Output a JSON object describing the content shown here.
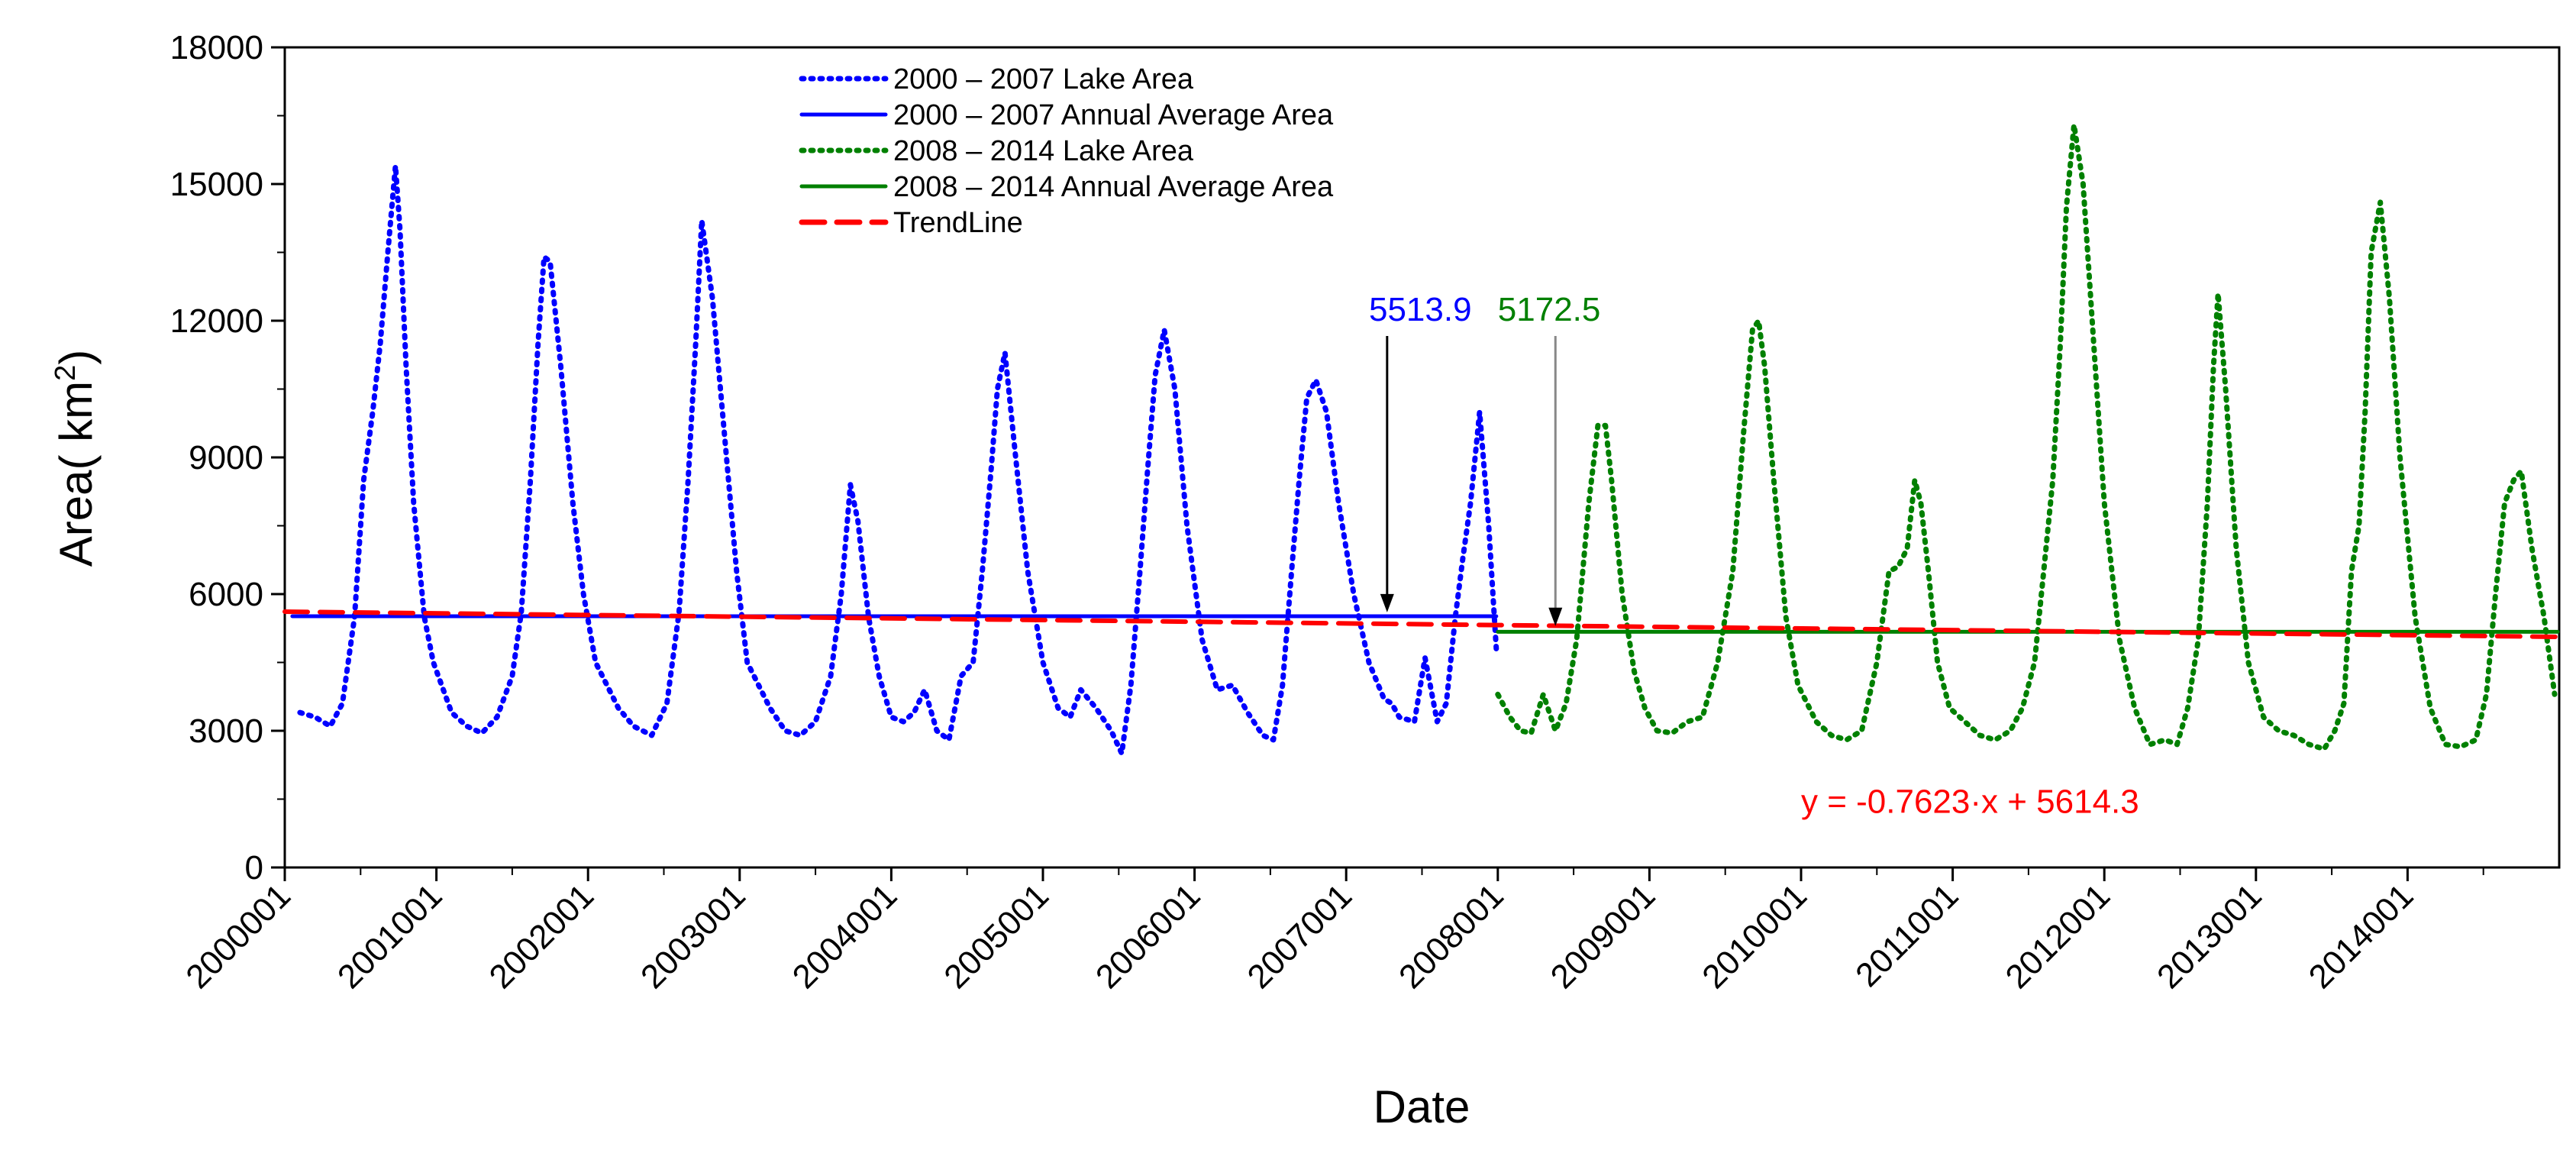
{
  "chart_data": {
    "type": "line",
    "title": "",
    "xlabel": "Date",
    "ylabel": "Area( km",
    "ylabel_sup": "2",
    "ylabel_close": ")",
    "ylim": [
      0,
      18000
    ],
    "xlim": [
      2000.0,
      2015.0
    ],
    "yticks": [
      0,
      3000,
      6000,
      9000,
      12000,
      15000,
      18000
    ],
    "xticks": [
      {
        "value": 2000,
        "label": "2000001"
      },
      {
        "value": 2001,
        "label": "2001001"
      },
      {
        "value": 2002,
        "label": "2002001"
      },
      {
        "value": 2003,
        "label": "2003001"
      },
      {
        "value": 2004,
        "label": "2004001"
      },
      {
        "value": 2005,
        "label": "2005001"
      },
      {
        "value": 2006,
        "label": "2006001"
      },
      {
        "value": 2007,
        "label": "2007001"
      },
      {
        "value": 2008,
        "label": "2008001"
      },
      {
        "value": 2009,
        "label": "2009001"
      },
      {
        "value": 2010,
        "label": "2010001"
      },
      {
        "value": 2011,
        "label": "2011001"
      },
      {
        "value": 2012,
        "label": "2012001"
      },
      {
        "value": 2013,
        "label": "2013001"
      },
      {
        "value": 2014,
        "label": "2014001"
      }
    ],
    "legend_placement": "top-left",
    "series": [
      {
        "name": "2000 – 2007 Lake Area",
        "style": "dotted",
        "color": "#0000ff",
        "x": [
          2000.1,
          2000.2,
          2000.3,
          2000.38,
          2000.46,
          2000.52,
          2000.58,
          2000.63,
          2000.68,
          2000.73,
          2000.76,
          2000.8,
          2000.85,
          2000.92,
          2000.98,
          2001.1,
          2001.2,
          2001.3,
          2001.4,
          2001.5,
          2001.56,
          2001.62,
          2001.67,
          2001.71,
          2001.75,
          2001.82,
          2001.9,
          2001.97,
          2002.05,
          2002.2,
          2002.3,
          2002.42,
          2002.52,
          2002.6,
          2002.66,
          2002.71,
          2002.75,
          2002.82,
          2002.9,
          2002.98,
          2003.05,
          2003.2,
          2003.3,
          2003.4,
          2003.5,
          2003.6,
          2003.67,
          2003.73,
          2003.78,
          2003.85,
          2003.92,
          2004.0,
          2004.08,
          2004.15,
          2004.22,
          2004.3,
          2004.38,
          2004.46,
          2004.54,
          2004.6,
          2004.66,
          2004.7,
          2004.75,
          2004.82,
          2004.9,
          2005.0,
          2005.1,
          2005.18,
          2005.25,
          2005.35,
          2005.45,
          2005.52,
          2005.58,
          2005.64,
          2005.69,
          2005.74,
          2005.8,
          2005.87,
          2005.95,
          2006.05,
          2006.15,
          2006.25,
          2006.35,
          2006.45,
          2006.52,
          2006.58,
          2006.64,
          2006.69,
          2006.74,
          2006.8,
          2006.87,
          2006.95,
          2007.05,
          2007.15,
          2007.25,
          2007.3,
          2007.35,
          2007.45,
          2007.52,
          2007.6,
          2007.66,
          2007.72,
          2007.77,
          2007.82,
          2007.88,
          2007.94,
          2007.99
        ],
        "values": [
          3400,
          3300,
          3100,
          3600,
          5500,
          8500,
          10000,
          11500,
          13500,
          15400,
          14000,
          11000,
          8000,
          5500,
          4500,
          3400,
          3100,
          2950,
          3300,
          4200,
          5600,
          8500,
          11500,
          13400,
          13300,
          11000,
          8000,
          6000,
          4500,
          3500,
          3100,
          2900,
          3600,
          5600,
          8500,
          11500,
          14200,
          12500,
          9500,
          6500,
          4500,
          3500,
          3000,
          2900,
          3200,
          4200,
          6000,
          8400,
          7600,
          5500,
          4200,
          3300,
          3200,
          3400,
          3900,
          3000,
          2800,
          4200,
          4500,
          6500,
          8800,
          10500,
          11300,
          9000,
          6500,
          4500,
          3500,
          3300,
          3900,
          3500,
          3000,
          2500,
          4000,
          6500,
          8700,
          10800,
          11800,
          10500,
          7500,
          5000,
          3900,
          4000,
          3400,
          2900,
          2800,
          4000,
          6500,
          8500,
          10300,
          10700,
          10000,
          8000,
          6000,
          4500,
          3700,
          3600,
          3300,
          3200,
          4600,
          3200,
          3600,
          5500,
          6800,
          8000,
          10000,
          7500,
          4800
        ]
      },
      {
        "name": "2000 – 2007 Annual Average Area",
        "style": "solid",
        "color": "#0000ff",
        "x": [
          2000.05,
          2007.99
        ],
        "values": [
          5513.9,
          5513.9
        ]
      },
      {
        "name": "2008 – 2014  Lake Area",
        "style": "dotted",
        "color": "#008000",
        "x": [
          2008.0,
          2008.08,
          2008.15,
          2008.22,
          2008.3,
          2008.38,
          2008.45,
          2008.52,
          2008.6,
          2008.66,
          2008.71,
          2008.75,
          2008.82,
          2008.9,
          2008.97,
          2009.05,
          2009.15,
          2009.25,
          2009.35,
          2009.45,
          2009.55,
          2009.62,
          2009.68,
          2009.72,
          2009.76,
          2009.82,
          2009.9,
          2009.98,
          2010.1,
          2010.2,
          2010.3,
          2010.4,
          2010.5,
          2010.58,
          2010.64,
          2010.7,
          2010.75,
          2010.79,
          2010.84,
          2010.9,
          2010.98,
          2011.08,
          2011.18,
          2011.28,
          2011.38,
          2011.46,
          2011.54,
          2011.6,
          2011.66,
          2011.71,
          2011.75,
          2011.8,
          2011.86,
          2011.93,
          2012.0,
          2012.1,
          2012.2,
          2012.3,
          2012.4,
          2012.48,
          2012.55,
          2012.62,
          2012.68,
          2012.72,
          2012.75,
          2012.8,
          2012.87,
          2012.95,
          2013.05,
          2013.15,
          2013.25,
          2013.35,
          2013.45,
          2013.52,
          2013.58,
          2013.63,
          2013.68,
          2013.72,
          2013.76,
          2013.82,
          2013.88,
          2013.95,
          2014.05,
          2014.15,
          2014.25,
          2014.35,
          2014.45,
          2014.52,
          2014.58,
          2014.64,
          2014.7,
          2014.75,
          2014.82,
          2014.9,
          2014.97
        ],
        "values": [
          3800,
          3300,
          3000,
          2950,
          3800,
          3000,
          3600,
          5000,
          8000,
          9700,
          9700,
          8500,
          6000,
          4300,
          3500,
          3000,
          2950,
          3200,
          3300,
          4500,
          6500,
          9500,
          11800,
          12000,
          11000,
          8500,
          5500,
          4000,
          3200,
          2900,
          2800,
          3000,
          4500,
          6500,
          6600,
          7000,
          8500,
          8000,
          6500,
          4500,
          3500,
          3200,
          2900,
          2800,
          3000,
          3500,
          4500,
          6500,
          8500,
          11500,
          14500,
          16300,
          15000,
          11500,
          8000,
          5000,
          3500,
          2700,
          2800,
          2700,
          3500,
          5000,
          8000,
          11000,
          12600,
          10500,
          7000,
          4500,
          3300,
          3000,
          2900,
          2700,
          2600,
          3000,
          3600,
          6500,
          7500,
          10000,
          13500,
          14600,
          12500,
          9000,
          5500,
          3500,
          2700,
          2650,
          2800,
          3800,
          6000,
          8000,
          8500,
          8700,
          7000,
          5500,
          3800
        ]
      },
      {
        "name": "2008 – 2014  Annual Average Area",
        "style": "solid",
        "color": "#008000",
        "x": [
          2008.0,
          2014.99
        ],
        "values": [
          5172.5,
          5172.5
        ]
      },
      {
        "name": "TrendLine",
        "style": "dashed",
        "color": "#ff0000",
        "x": [
          2000.0,
          2015.0
        ],
        "values": [
          5614.3,
          5062
        ]
      }
    ],
    "annotations": [
      {
        "text": "5513.9",
        "color": "#0000ff",
        "arrow_x": 2007.27,
        "arrow_y": 5600,
        "label_anchor_value": [
          2007.15,
          12000
        ]
      },
      {
        "text": "5172.5",
        "color": "#008000",
        "arrow_x": 2008.38,
        "arrow_y": 5300,
        "label_anchor_value": [
          2008.0,
          12000
        ]
      },
      {
        "text": "y = -0.7623·x + 5614.3",
        "color": "#ff0000",
        "label_anchor_value": [
          2010.0,
          1200
        ]
      }
    ]
  }
}
